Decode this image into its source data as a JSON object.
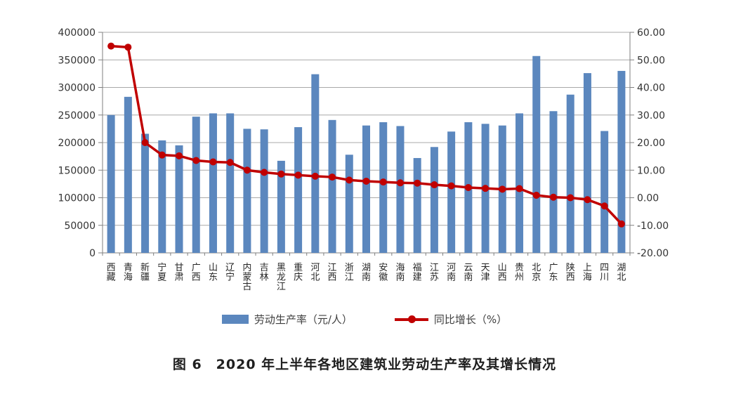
{
  "title": "图 6　2020 年上半年各地区建筑业劳动生产率及其增长情况",
  "legend": {
    "bar_label": "劳动生产率（元/人）",
    "line_label": "同比增长（%）"
  },
  "colors": {
    "bar": "#5B87BE",
    "line": "#C00000",
    "grid": "#A9A9A9",
    "axis": "#7F7F7F",
    "text": "#333333"
  },
  "chart_data": {
    "type": "bar",
    "subtype": "bar+line combo, dual axis",
    "title": "图 6　2020 年上半年各地区建筑业劳动生产率及其增长情况",
    "categories": [
      "西藏",
      "青海",
      "新疆",
      "宁夏",
      "甘肃",
      "广西",
      "山东",
      "辽宁",
      "内蒙古",
      "吉林",
      "黑龙江",
      "重庆",
      "河北",
      "江西",
      "浙江",
      "湖南",
      "安徽",
      "海南",
      "福建",
      "江苏",
      "河南",
      "云南",
      "天津",
      "山西",
      "贵州",
      "北京",
      "广东",
      "陕西",
      "上海",
      "四川",
      "湖北"
    ],
    "series": [
      {
        "name": "劳动生产率（元/人）",
        "type": "bar",
        "axis": "left",
        "values": [
          250000,
          283000,
          216000,
          204000,
          195000,
          247000,
          253000,
          253000,
          225000,
          224000,
          167000,
          228000,
          324000,
          241000,
          178000,
          231000,
          237000,
          230000,
          172000,
          192000,
          220000,
          237000,
          234000,
          231000,
          253000,
          357000,
          257000,
          287000,
          326000,
          221000,
          330000
        ]
      },
      {
        "name": "同比增长（%）",
        "type": "line",
        "axis": "right",
        "values": [
          55.0,
          54.6,
          20.0,
          15.5,
          15.2,
          13.5,
          13.0,
          12.8,
          10.0,
          9.2,
          8.6,
          8.2,
          7.8,
          7.5,
          6.4,
          6.0,
          5.7,
          5.4,
          5.3,
          4.7,
          4.3,
          3.7,
          3.4,
          3.1,
          3.3,
          0.9,
          0.2,
          0.0,
          -0.7,
          -3.0,
          -9.5
        ]
      }
    ],
    "left_axis": {
      "min": 0,
      "max": 400000,
      "step": 50000,
      "ticks": [
        "0",
        "50000",
        "100000",
        "150000",
        "200000",
        "250000",
        "300000",
        "350000",
        "400000"
      ]
    },
    "right_axis": {
      "min": -20,
      "max": 60,
      "step": 10,
      "ticks": [
        "-20.00",
        "-10.00",
        "0.00",
        "10.00",
        "20.00",
        "30.00",
        "40.00",
        "50.00",
        "60.00"
      ]
    },
    "grid": true,
    "legend_position": "bottom"
  }
}
